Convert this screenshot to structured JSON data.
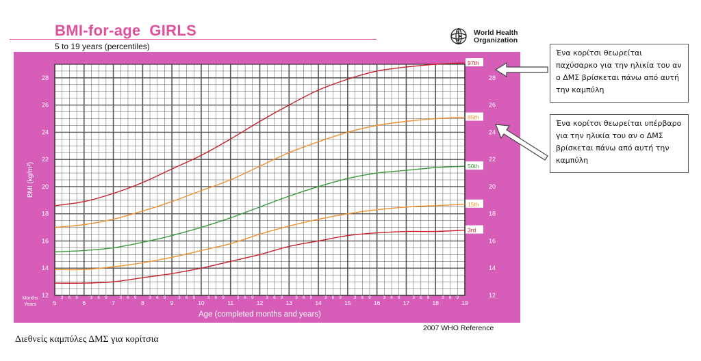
{
  "header": {
    "title": "BMI-for-age  GIRLS",
    "subtitle": "5 to 19 years (percentiles)",
    "organization": "World Health Organization",
    "org_line1": "World Health",
    "org_line2": "Organization",
    "org_logo_icon": "who-emblem-icon"
  },
  "colors": {
    "frame": "#d65db8",
    "title": "#e0519d",
    "grid": "#555555",
    "p97": "#c8202a",
    "p85": "#f0902e",
    "p50": "#3a9a3a",
    "p15": "#f0902e",
    "p3": "#c8202a"
  },
  "chart_data": {
    "type": "line",
    "xlabel": "Age (completed months and years)",
    "ylabel": "BMI (kg/m²)",
    "xlim": [
      5,
      19
    ],
    "ylim": [
      12,
      29
    ],
    "x_ticks": [
      "5",
      "6",
      "7",
      "8",
      "9",
      "10",
      "11",
      "12",
      "13",
      "14",
      "15",
      "16",
      "17",
      "18",
      "19"
    ],
    "month_ticks": [
      "3",
      "6",
      "9"
    ],
    "y_ticks": [
      "12",
      "14",
      "16",
      "18",
      "20",
      "22",
      "24",
      "26",
      "28"
    ],
    "axis_corner_label_top": "Months",
    "axis_corner_label_bottom": "Years",
    "x": [
      5,
      6,
      7,
      8,
      9,
      10,
      11,
      12,
      13,
      14,
      15,
      16,
      17,
      18,
      19
    ],
    "series": [
      {
        "name": "97th",
        "values": [
          18.6,
          18.9,
          19.5,
          20.3,
          21.3,
          22.3,
          23.5,
          24.8,
          26.0,
          27.1,
          27.9,
          28.5,
          28.8,
          29.0,
          29.1
        ]
      },
      {
        "name": "85th",
        "values": [
          17.0,
          17.2,
          17.6,
          18.2,
          18.9,
          19.7,
          20.5,
          21.5,
          22.5,
          23.3,
          24.0,
          24.5,
          24.8,
          25.0,
          25.1
        ]
      },
      {
        "name": "50th",
        "values": [
          15.2,
          15.3,
          15.5,
          15.9,
          16.4,
          17.0,
          17.7,
          18.5,
          19.3,
          20.0,
          20.6,
          21.0,
          21.2,
          21.4,
          21.5
        ]
      },
      {
        "name": "15th",
        "values": [
          13.9,
          13.9,
          14.1,
          14.4,
          14.8,
          15.3,
          15.8,
          16.5,
          17.1,
          17.6,
          18.0,
          18.3,
          18.5,
          18.6,
          18.7
        ]
      },
      {
        "name": "3rd",
        "values": [
          12.9,
          12.9,
          13.0,
          13.3,
          13.6,
          14.0,
          14.5,
          15.0,
          15.6,
          16.0,
          16.4,
          16.6,
          16.7,
          16.7,
          16.8
        ]
      }
    ]
  },
  "footer": {
    "reference": "2007 WHO Reference",
    "caption": "Διεθνείς καμπύλες ΔΜΣ για κορίτσια"
  },
  "annotations": [
    {
      "text": "Ένα κορίτσι θεωρείται παχύσαρκο για την ηλικία του αν ο ΔΜΣ βρίσκεται πάνω από αυτή την καμπύλη",
      "arrow_icon": "arrow-left-icon",
      "target_series": "97th"
    },
    {
      "text": "Ένα κορίτσι θεωρείται υπέρβαρο για την ηλικία του αν ο ΔΜΣ βρίσκεται πάνω από αυτή την καμπύλη",
      "arrow_icon": "arrow-up-left-icon",
      "target_series": "85th"
    }
  ]
}
